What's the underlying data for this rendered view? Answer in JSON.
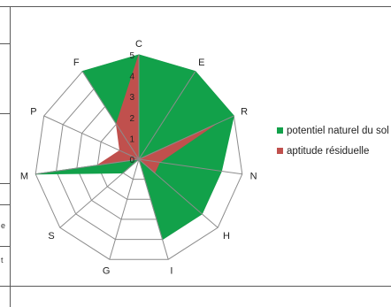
{
  "chart_data": {
    "type": "radar",
    "categories": [
      "C",
      "E",
      "R",
      "N",
      "H",
      "I",
      "G",
      "S",
      "M",
      "P",
      "F"
    ],
    "rmax": 5,
    "ticks": [
      "0",
      "1",
      "2",
      "3",
      "4",
      "5"
    ],
    "series": [
      {
        "name": "potentiel naturel du sol",
        "color": "#12a14a",
        "values": [
          5,
          5,
          5,
          4,
          4,
          4,
          0,
          1,
          5,
          0,
          5
        ]
      },
      {
        "name": "aptitude résiduelle",
        "color": "#c0504d",
        "values": [
          5,
          0,
          4,
          1,
          1,
          0,
          0,
          0,
          2,
          1,
          2
        ]
      }
    ],
    "legend_position": "right",
    "grid": true
  },
  "edge_glyphs": {
    "left_a": "e",
    "left_b": "t"
  }
}
